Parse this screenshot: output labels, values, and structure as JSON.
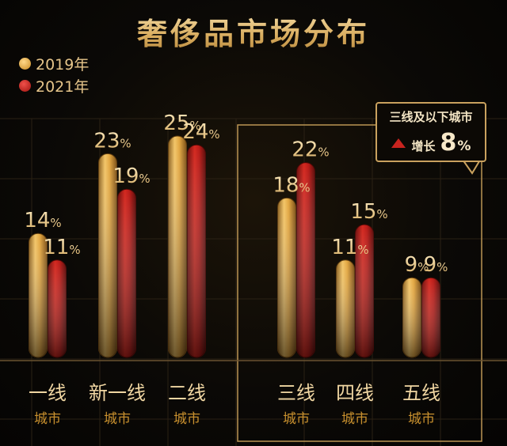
{
  "title": "奢侈品市场分布",
  "legend": [
    {
      "label": "2019年",
      "color": "#e0a83c"
    },
    {
      "label": "2021年",
      "color": "#c8221f"
    }
  ],
  "callout": {
    "title": "三线及以下城市",
    "label": "增长",
    "value": "8",
    "unit": "%"
  },
  "chart_data": {
    "type": "bar",
    "title": "奢侈品市场分布",
    "categories": [
      {
        "main": "一线",
        "sub": "城市"
      },
      {
        "main": "新一线",
        "sub": "城市"
      },
      {
        "main": "二线",
        "sub": "城市"
      },
      {
        "main": "三线",
        "sub": "城市"
      },
      {
        "main": "四线",
        "sub": "城市"
      },
      {
        "main": "五线",
        "sub": "城市"
      }
    ],
    "series": [
      {
        "name": "2019年",
        "values": [
          14,
          23,
          25,
          18,
          11,
          9
        ]
      },
      {
        "name": "2021年",
        "values": [
          11,
          19,
          24,
          22,
          15,
          9
        ]
      }
    ],
    "unit": "%",
    "ylim": [
      0,
      25
    ],
    "grid": true,
    "legend_position": "top-left"
  }
}
